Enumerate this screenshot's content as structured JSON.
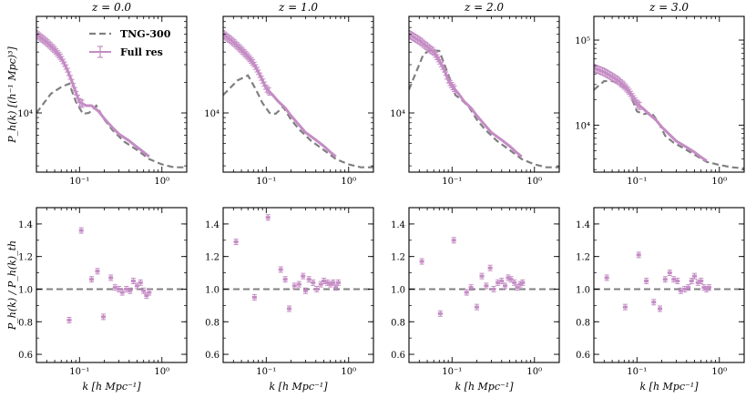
{
  "figure": {
    "top_ylabel": "P_h(k) [(h⁻¹ Mpc)³]",
    "bottom_ylabel": "P_h(k) / P_h(k)_th",
    "xlabel": "k [h Mpc⁻¹]",
    "legend": [
      {
        "label": "TNG-300",
        "style": "dashed",
        "color": "#808080"
      },
      {
        "label": "Full res",
        "style": "solid+errorbar",
        "color": "#c48cc4"
      }
    ]
  },
  "chart_data": [
    {
      "type": "line",
      "panel": "top",
      "title": "z = 0.0",
      "xscale": "log",
      "xlim": [
        0.03,
        2.0
      ],
      "yscale": "log",
      "ylim": [
        2600,
        90000
      ],
      "yticks": [
        {
          "value": 10000,
          "label": "10⁴"
        }
      ],
      "xticks": [
        {
          "value": 0.1,
          "label": "10⁻¹"
        },
        {
          "value": 1,
          "label": "10⁰"
        }
      ],
      "series": [
        {
          "name": "TNG-300",
          "x": [
            0.03,
            0.045,
            0.06,
            0.075,
            0.09,
            0.11,
            0.13,
            0.16,
            0.2,
            0.25,
            0.35,
            0.5,
            0.7,
            1.0,
            1.4,
            2.0
          ],
          "y": [
            10000,
            15500,
            18000,
            19500,
            13000,
            9800,
            10000,
            11800,
            8600,
            6800,
            5200,
            4300,
            3500,
            3100,
            2900,
            2900
          ]
        },
        {
          "name": "Full res",
          "x": [
            0.03,
            0.04,
            0.05,
            0.06,
            0.07,
            0.08,
            0.09,
            0.1,
            0.12,
            0.14,
            0.17,
            0.2,
            0.25,
            0.3,
            0.4,
            0.5,
            0.6,
            0.7
          ],
          "y": [
            60000,
            50000,
            42000,
            35000,
            27500,
            21000,
            16000,
            12800,
            11800,
            11800,
            10400,
            8800,
            7200,
            6200,
            5300,
            4600,
            4100,
            3700
          ]
        }
      ]
    },
    {
      "type": "line",
      "panel": "top",
      "title": "z = 1.0",
      "xscale": "log",
      "xlim": [
        0.03,
        2.0
      ],
      "yscale": "log",
      "ylim": [
        2600,
        90000
      ],
      "yticks": [
        {
          "value": 10000,
          "label": "10⁴"
        }
      ],
      "xticks": [
        {
          "value": 0.1,
          "label": "10⁻¹"
        },
        {
          "value": 1,
          "label": "10⁰"
        }
      ],
      "series": [
        {
          "name": "TNG-300",
          "x": [
            0.03,
            0.045,
            0.06,
            0.075,
            0.09,
            0.11,
            0.13,
            0.16,
            0.2,
            0.25,
            0.35,
            0.5,
            0.7,
            1.0,
            1.4,
            2.0
          ],
          "y": [
            15000,
            21000,
            23500,
            17000,
            12500,
            10000,
            9800,
            11500,
            8600,
            6900,
            5300,
            4300,
            3500,
            3100,
            2900,
            2900
          ]
        },
        {
          "name": "Full res",
          "x": [
            0.03,
            0.04,
            0.05,
            0.06,
            0.07,
            0.08,
            0.09,
            0.1,
            0.12,
            0.14,
            0.17,
            0.2,
            0.25,
            0.3,
            0.4,
            0.5,
            0.6,
            0.7
          ],
          "y": [
            60000,
            50000,
            42000,
            36000,
            31000,
            25500,
            21000,
            17500,
            15000,
            13000,
            11200,
            9400,
            7600,
            6400,
            5400,
            4700,
            4100,
            3700
          ]
        }
      ]
    },
    {
      "type": "line",
      "panel": "top",
      "title": "z = 2.0",
      "xscale": "log",
      "xlim": [
        0.03,
        2.0
      ],
      "yscale": "log",
      "ylim": [
        2600,
        90000
      ],
      "yticks": [
        {
          "value": 10000,
          "label": "10⁴"
        }
      ],
      "xticks": [
        {
          "value": 0.1,
          "label": "10⁻¹"
        },
        {
          "value": 1,
          "label": "10⁰"
        }
      ],
      "series": [
        {
          "name": "TNG-300",
          "x": [
            0.03,
            0.045,
            0.055,
            0.07,
            0.09,
            0.11,
            0.13,
            0.16,
            0.2,
            0.25,
            0.35,
            0.5,
            0.7,
            1.0,
            1.4,
            2.0
          ],
          "y": [
            17000,
            38000,
            42000,
            41000,
            24000,
            15000,
            13500,
            11500,
            8600,
            6900,
            5300,
            4300,
            3500,
            3100,
            2900,
            2900
          ]
        },
        {
          "name": "Full res",
          "x": [
            0.03,
            0.04,
            0.05,
            0.06,
            0.07,
            0.08,
            0.09,
            0.1,
            0.12,
            0.14,
            0.17,
            0.2,
            0.25,
            0.3,
            0.4,
            0.5,
            0.6,
            0.7
          ],
          "y": [
            60000,
            52000,
            45000,
            40000,
            33000,
            27000,
            21000,
            18500,
            15500,
            13000,
            11200,
            9400,
            7600,
            6400,
            5400,
            4700,
            4100,
            3700
          ]
        }
      ]
    },
    {
      "type": "line",
      "panel": "top",
      "title": "z = 3.0",
      "xscale": "log",
      "xlim": [
        0.03,
        2.0
      ],
      "yscale": "log",
      "ylim": [
        2800,
        190000
      ],
      "yticks": [
        {
          "value": 10000,
          "label": "10⁴"
        },
        {
          "value": 100000,
          "label": "10⁵"
        }
      ],
      "xticks": [
        {
          "value": 0.1,
          "label": "10⁻¹"
        },
        {
          "value": 1,
          "label": "10⁰"
        }
      ],
      "series": [
        {
          "name": "TNG-300",
          "x": [
            0.03,
            0.04,
            0.05,
            0.065,
            0.08,
            0.1,
            0.12,
            0.15,
            0.18,
            0.22,
            0.28,
            0.35,
            0.5,
            0.7,
            1.0,
            1.4,
            2.0
          ],
          "y": [
            26000,
            33000,
            33000,
            30000,
            25000,
            14500,
            13500,
            14000,
            11000,
            7500,
            6200,
            5500,
            4500,
            3700,
            3400,
            3200,
            3100
          ]
        },
        {
          "name": "Full res",
          "x": [
            0.03,
            0.04,
            0.05,
            0.06,
            0.07,
            0.08,
            0.09,
            0.1,
            0.12,
            0.14,
            0.17,
            0.2,
            0.25,
            0.3,
            0.4,
            0.5,
            0.6,
            0.7
          ],
          "y": [
            47000,
            42000,
            37000,
            33000,
            29000,
            25000,
            21000,
            18000,
            15500,
            13500,
            11500,
            9500,
            7700,
            6500,
            5500,
            4800,
            4200,
            3800
          ]
        }
      ]
    },
    {
      "type": "scatter",
      "panel": "bottom",
      "xscale": "log",
      "xlim": [
        0.03,
        2.0
      ],
      "ylim": [
        0.55,
        1.5
      ],
      "yticks": [
        0.6,
        0.8,
        1.0,
        1.2,
        1.4
      ],
      "reference_line": 1.0,
      "series": [
        {
          "name": "Full res",
          "x": [
            0.075,
            0.105,
            0.14,
            0.165,
            0.195,
            0.24,
            0.27,
            0.3,
            0.33,
            0.37,
            0.41,
            0.45,
            0.5,
            0.55,
            0.6,
            0.65,
            0.7
          ],
          "y": [
            0.81,
            1.36,
            1.06,
            1.11,
            0.83,
            1.07,
            1.01,
            1.0,
            0.98,
            1.0,
            0.99,
            1.05,
            1.02,
            1.04,
            0.99,
            0.96,
            0.98
          ]
        }
      ]
    },
    {
      "type": "scatter",
      "panel": "bottom",
      "xscale": "log",
      "xlim": [
        0.03,
        2.0
      ],
      "ylim": [
        0.55,
        1.5
      ],
      "yticks": [
        0.6,
        0.8,
        1.0,
        1.2,
        1.4
      ],
      "reference_line": 1.0,
      "series": [
        {
          "name": "Full res",
          "x": [
            0.043,
            0.072,
            0.105,
            0.15,
            0.17,
            0.19,
            0.22,
            0.25,
            0.28,
            0.3,
            0.33,
            0.37,
            0.41,
            0.46,
            0.5,
            0.55,
            0.6,
            0.65,
            0.7,
            0.75
          ],
          "y": [
            1.29,
            0.95,
            1.44,
            1.12,
            1.06,
            0.88,
            1.02,
            1.03,
            1.08,
            0.99,
            1.06,
            1.04,
            1.0,
            1.03,
            1.05,
            1.04,
            1.03,
            1.04,
            1.01,
            1.04
          ]
        }
      ]
    },
    {
      "type": "scatter",
      "panel": "bottom",
      "xscale": "log",
      "xlim": [
        0.03,
        2.0
      ],
      "ylim": [
        0.55,
        1.5
      ],
      "yticks": [
        0.6,
        0.8,
        1.0,
        1.2,
        1.4
      ],
      "reference_line": 1.0,
      "series": [
        {
          "name": "Full res",
          "x": [
            0.043,
            0.072,
            0.105,
            0.15,
            0.17,
            0.2,
            0.23,
            0.26,
            0.29,
            0.32,
            0.36,
            0.4,
            0.44,
            0.48,
            0.52,
            0.57,
            0.62,
            0.67,
            0.72
          ],
          "y": [
            1.17,
            0.85,
            1.3,
            0.98,
            1.01,
            0.89,
            1.08,
            1.02,
            1.13,
            1.0,
            1.04,
            1.05,
            1.02,
            1.07,
            1.06,
            1.04,
            1.01,
            1.03,
            1.04
          ]
        }
      ]
    },
    {
      "type": "scatter",
      "panel": "bottom",
      "xscale": "log",
      "xlim": [
        0.03,
        2.0
      ],
      "ylim": [
        0.55,
        1.5
      ],
      "yticks": [
        0.6,
        0.8,
        1.0,
        1.2,
        1.4
      ],
      "reference_line": 1.0,
      "series": [
        {
          "name": "Full res",
          "x": [
            0.043,
            0.072,
            0.105,
            0.13,
            0.16,
            0.19,
            0.22,
            0.25,
            0.28,
            0.31,
            0.34,
            0.38,
            0.42,
            0.46,
            0.5,
            0.55,
            0.6,
            0.65,
            0.7,
            0.75
          ],
          "y": [
            1.07,
            0.89,
            1.21,
            1.05,
            0.92,
            0.88,
            1.06,
            1.1,
            1.06,
            1.05,
            0.99,
            1.0,
            1.01,
            1.05,
            1.08,
            1.04,
            1.05,
            1.01,
            1.0,
            1.01
          ]
        }
      ]
    }
  ]
}
